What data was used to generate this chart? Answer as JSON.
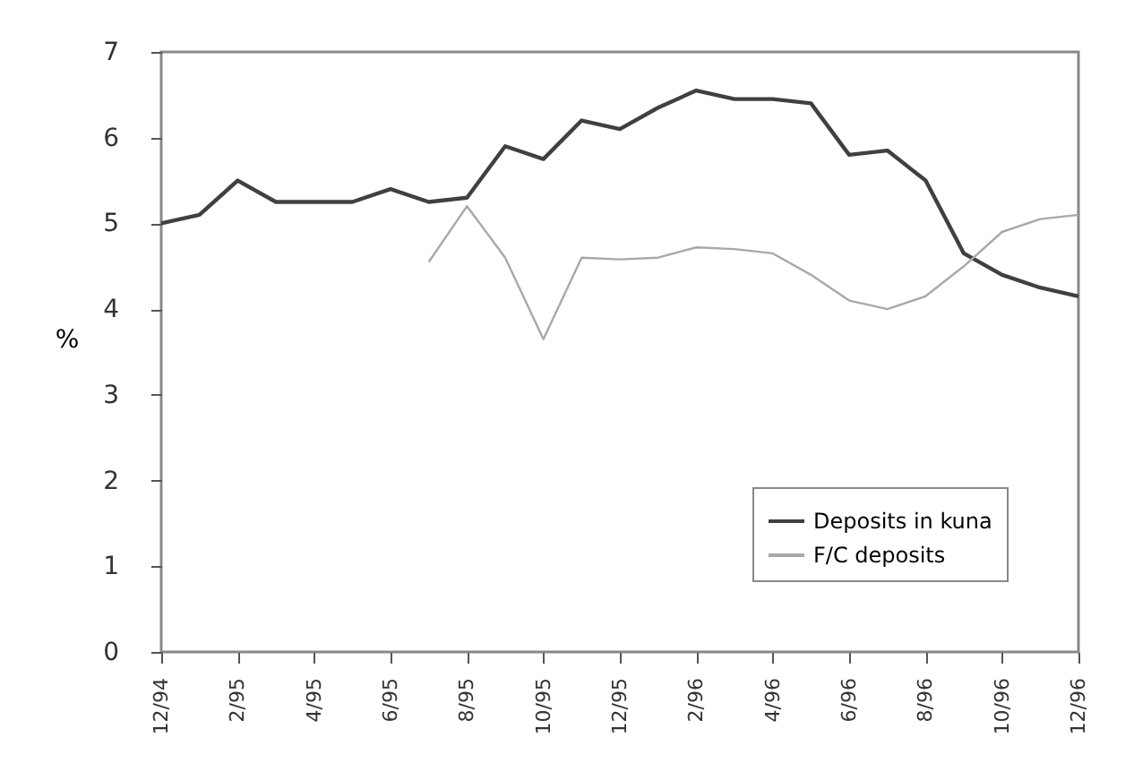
{
  "chart_data": {
    "type": "line",
    "ylabel": "%",
    "categories": [
      "12/94",
      null,
      "2/95",
      null,
      "4/95",
      null,
      "6/95",
      null,
      "8/95",
      null,
      "10/95",
      null,
      "12/95",
      null,
      "2/96",
      null,
      "4/96",
      null,
      "6/96",
      null,
      "8/96",
      null,
      "10/96",
      null,
      "12/96"
    ],
    "series": [
      {
        "name": "Deposits in kuna",
        "color": "#404040",
        "values": [
          5.0,
          5.1,
          5.5,
          5.25,
          5.25,
          5.25,
          5.4,
          5.25,
          5.3,
          5.9,
          5.75,
          6.2,
          6.1,
          6.35,
          6.55,
          6.45,
          6.45,
          6.4,
          5.8,
          5.85,
          5.5,
          4.65,
          4.4,
          4.25,
          4.15
        ]
      },
      {
        "name": "F/C deposits",
        "color": "#a8a8a8",
        "values": [
          null,
          null,
          null,
          null,
          null,
          null,
          null,
          4.55,
          5.2,
          4.6,
          3.65,
          4.6,
          4.58,
          4.6,
          4.72,
          4.7,
          4.65,
          4.4,
          4.1,
          4.0,
          4.15,
          4.5,
          4.9,
          5.05,
          5.1
        ]
      }
    ],
    "ylim": [
      0,
      7
    ],
    "yticks": [
      0,
      1,
      2,
      3,
      4,
      5,
      6,
      7
    ],
    "grid": false,
    "legend": "bottom right"
  }
}
